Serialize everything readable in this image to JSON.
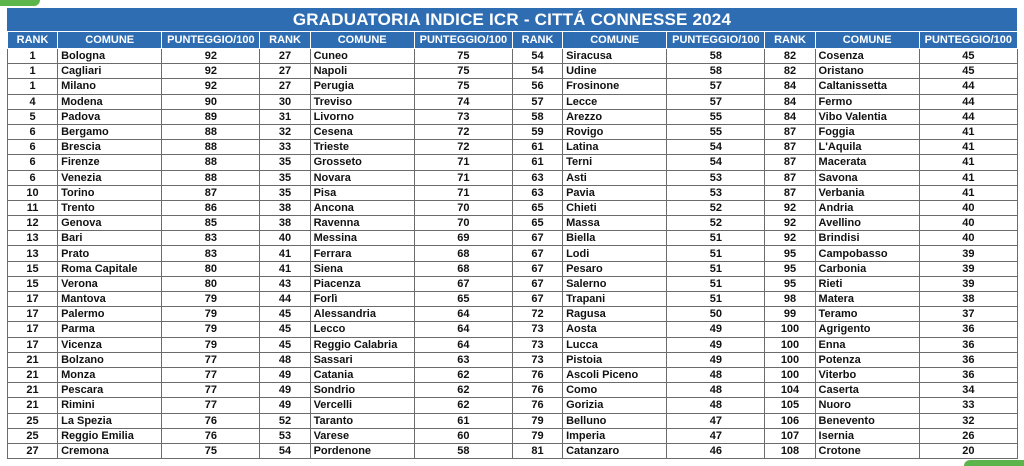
{
  "table": {
    "title": "GRADUATORIA INDICE ICR - CITTÁ CONNESSE 2024",
    "columns": [
      "RANK",
      "COMUNE",
      "PUNTEGGIO/100"
    ],
    "rows": [
      [
        1,
        "Bologna",
        92
      ],
      [
        1,
        "Cagliari",
        92
      ],
      [
        1,
        "Milano",
        92
      ],
      [
        4,
        "Modena",
        90
      ],
      [
        5,
        "Padova",
        89
      ],
      [
        6,
        "Bergamo",
        88
      ],
      [
        6,
        "Brescia",
        88
      ],
      [
        6,
        "Firenze",
        88
      ],
      [
        6,
        "Venezia",
        88
      ],
      [
        10,
        "Torino",
        87
      ],
      [
        11,
        "Trento",
        86
      ],
      [
        12,
        "Genova",
        85
      ],
      [
        13,
        "Bari",
        83
      ],
      [
        13,
        "Prato",
        83
      ],
      [
        15,
        "Roma Capitale",
        80
      ],
      [
        15,
        "Verona",
        80
      ],
      [
        17,
        "Mantova",
        79
      ],
      [
        17,
        "Palermo",
        79
      ],
      [
        17,
        "Parma",
        79
      ],
      [
        17,
        "Vicenza",
        79
      ],
      [
        21,
        "Bolzano",
        77
      ],
      [
        21,
        "Monza",
        77
      ],
      [
        21,
        "Pescara",
        77
      ],
      [
        21,
        "Rimini",
        77
      ],
      [
        25,
        "La Spezia",
        76
      ],
      [
        25,
        "Reggio Emilia",
        76
      ],
      [
        27,
        "Cremona",
        75
      ],
      [
        27,
        "Cuneo",
        75
      ],
      [
        27,
        "Napoli",
        75
      ],
      [
        27,
        "Perugia",
        75
      ],
      [
        30,
        "Treviso",
        74
      ],
      [
        31,
        "Livorno",
        73
      ],
      [
        32,
        "Cesena",
        72
      ],
      [
        33,
        "Trieste",
        72
      ],
      [
        35,
        "Grosseto",
        71
      ],
      [
        35,
        "Novara",
        71
      ],
      [
        35,
        "Pisa",
        71
      ],
      [
        38,
        "Ancona",
        70
      ],
      [
        38,
        "Ravenna",
        70
      ],
      [
        40,
        "Messina",
        69
      ],
      [
        41,
        "Ferrara",
        68
      ],
      [
        41,
        "Siena",
        68
      ],
      [
        43,
        "Piacenza",
        67
      ],
      [
        44,
        "Forlì",
        65
      ],
      [
        45,
        "Alessandria",
        64
      ],
      [
        45,
        "Lecco",
        64
      ],
      [
        45,
        "Reggio Calabria",
        64
      ],
      [
        48,
        "Sassari",
        63
      ],
      [
        49,
        "Catania",
        62
      ],
      [
        49,
        "Sondrio",
        62
      ],
      [
        49,
        "Vercelli",
        62
      ],
      [
        52,
        "Taranto",
        61
      ],
      [
        53,
        "Varese",
        60
      ],
      [
        54,
        "Pordenone",
        58
      ],
      [
        54,
        "Siracusa",
        58
      ],
      [
        54,
        "Udine",
        58
      ],
      [
        56,
        "Frosinone",
        57
      ],
      [
        57,
        "Lecce",
        57
      ],
      [
        58,
        "Arezzo",
        55
      ],
      [
        59,
        "Rovigo",
        55
      ],
      [
        61,
        "Latina",
        54
      ],
      [
        61,
        "Terni",
        54
      ],
      [
        63,
        "Asti",
        53
      ],
      [
        63,
        "Pavia",
        53
      ],
      [
        65,
        "Chieti",
        52
      ],
      [
        65,
        "Massa",
        52
      ],
      [
        67,
        "Biella",
        51
      ],
      [
        67,
        "Lodi",
        51
      ],
      [
        67,
        "Pesaro",
        51
      ],
      [
        67,
        "Salerno",
        51
      ],
      [
        67,
        "Trapani",
        51
      ],
      [
        72,
        "Ragusa",
        50
      ],
      [
        73,
        "Aosta",
        49
      ],
      [
        73,
        "Lucca",
        49
      ],
      [
        73,
        "Pistoia",
        49
      ],
      [
        76,
        "Ascoli Piceno",
        48
      ],
      [
        76,
        "Como",
        48
      ],
      [
        76,
        "Gorizia",
        48
      ],
      [
        79,
        "Belluno",
        47
      ],
      [
        79,
        "Imperia",
        47
      ],
      [
        81,
        "Catanzaro",
        46
      ],
      [
        82,
        "Cosenza",
        45
      ],
      [
        82,
        "Oristano",
        45
      ],
      [
        84,
        "Caltanissetta",
        44
      ],
      [
        84,
        "Fermo",
        44
      ],
      [
        84,
        "Vibo Valentia",
        44
      ],
      [
        87,
        "Foggia",
        41
      ],
      [
        87,
        "L'Aquila",
        41
      ],
      [
        87,
        "Macerata",
        41
      ],
      [
        87,
        "Savona",
        41
      ],
      [
        87,
        "Verbania",
        41
      ],
      [
        92,
        "Andria",
        40
      ],
      [
        92,
        "Avellino",
        40
      ],
      [
        92,
        "Brindisi",
        40
      ],
      [
        95,
        "Campobasso",
        39
      ],
      [
        95,
        "Carbonia",
        39
      ],
      [
        95,
        "Rieti",
        39
      ],
      [
        98,
        "Matera",
        38
      ],
      [
        99,
        "Teramo",
        37
      ],
      [
        100,
        "Agrigento",
        36
      ],
      [
        100,
        "Enna",
        36
      ],
      [
        100,
        "Potenza",
        36
      ],
      [
        100,
        "Viterbo",
        36
      ],
      [
        104,
        "Caserta",
        34
      ],
      [
        105,
        "Nuoro",
        33
      ],
      [
        106,
        "Benevento",
        32
      ],
      [
        107,
        "Isernia",
        26
      ],
      [
        108,
        "Crotone",
        20
      ]
    ]
  }
}
